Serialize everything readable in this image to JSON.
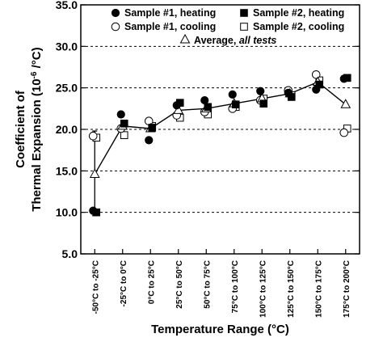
{
  "chart_data": {
    "type": "scatter",
    "xlabel": "Temperature Range (°C)",
    "ylabel_line1": "Coefficient of",
    "ylabel_line2_prefix": "Thermal Expansion (10",
    "ylabel_superscript": "-6",
    "ylabel_line2_suffix": " /°C)",
    "ylim": [
      5.0,
      35.0
    ],
    "yticks": [
      "5.0",
      "10.0",
      "15.0",
      "20.0",
      "25.0",
      "30.0",
      "35.0"
    ],
    "grid": "horizontal dashed",
    "legend_placement": "top",
    "categories": [
      "-50°C to -25°C",
      "-25°C to 0°C",
      "0°C to 25°C",
      "25°C to 50°C",
      "50°C to 75°C",
      "75°C to 100°C",
      "100°C to 125°C",
      "125°C to 150°C",
      "150°C to 175°C",
      "175°C to 200°C"
    ],
    "series": [
      {
        "name": "Sample #1, heating",
        "marker": "filled-circle",
        "values": [
          10.2,
          21.8,
          18.7,
          22.9,
          23.5,
          24.2,
          24.6,
          24.4,
          24.8,
          26.1
        ]
      },
      {
        "name": "Sample #2, heating",
        "marker": "filled-square",
        "values": [
          10.0,
          20.7,
          20.2,
          23.2,
          22.7,
          23.0,
          23.1,
          23.9,
          25.4,
          26.2
        ]
      },
      {
        "name": "Sample #1, cooling",
        "marker": "open-circle",
        "values": [
          19.2,
          20.1,
          21.0,
          21.7,
          22.1,
          22.5,
          23.5,
          24.7,
          26.6,
          19.6
        ]
      },
      {
        "name": "Sample #2, cooling",
        "marker": "open-square",
        "values": [
          19.0,
          19.3,
          20.4,
          21.4,
          21.8,
          22.7,
          23.7,
          24.1,
          25.9,
          20.1
        ]
      },
      {
        "name_prefix": "Average, ",
        "name_italic": "all tests",
        "marker": "open-triangle-line",
        "values": [
          14.6,
          20.4,
          20.1,
          22.3,
          22.5,
          23.1,
          23.7,
          24.3,
          25.7,
          23.0
        ]
      }
    ],
    "error_bar_range": [
      {
        "low": 9.6,
        "high": 19.8
      },
      null,
      null,
      null,
      null,
      null,
      null,
      null,
      null,
      null
    ],
    "colors": {
      "marker": "#000000",
      "grid": "#000000",
      "background": "#ffffff"
    }
  }
}
